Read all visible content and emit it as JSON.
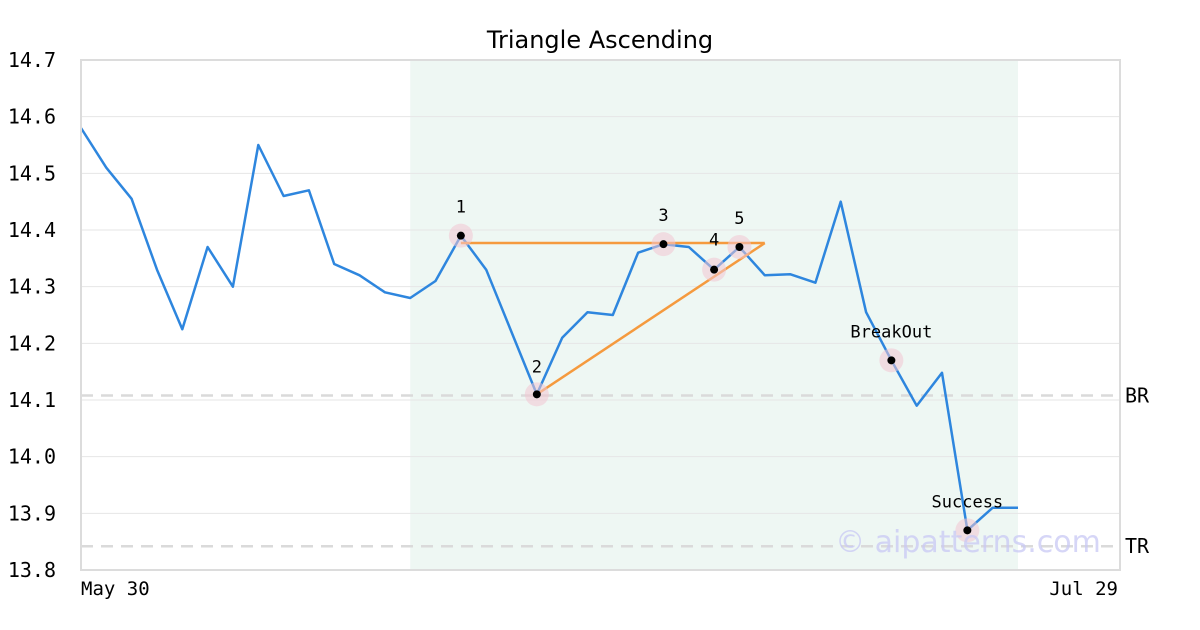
{
  "chart_data": {
    "type": "line",
    "title": "Triangle Ascending",
    "ylim": [
      13.8,
      14.7
    ],
    "y_ticks": [
      "13.8",
      "13.9",
      "14.0",
      "14.1",
      "14.2",
      "14.3",
      "14.4",
      "14.5",
      "14.6",
      "14.7"
    ],
    "x_tick_labels": [
      "May 30",
      "Jul 29"
    ],
    "grid": "horizontal",
    "series": [
      {
        "color": "#2e86de",
        "values": [
          14.58,
          14.51,
          14.455,
          14.33,
          14.225,
          14.37,
          14.3,
          14.55,
          14.46,
          14.47,
          14.34,
          14.32,
          14.29,
          14.28,
          14.31,
          14.39,
          14.33,
          14.22,
          14.11,
          14.21,
          14.255,
          14.25,
          14.36,
          14.375,
          14.37,
          14.33,
          14.37,
          14.32,
          14.322,
          14.307,
          14.45,
          14.255,
          14.17,
          14.09,
          14.148,
          13.87,
          13.91,
          13.91
        ]
      }
    ],
    "pattern_region": {
      "from_index": 13,
      "to_index": 37,
      "color": "#eef7f3"
    },
    "pattern_lines": {
      "color": "#f59a3e",
      "resistance": {
        "from_index": 15,
        "to_index": 27,
        "y": 14.377
      },
      "support": {
        "from_index": 18,
        "y_from": 14.11,
        "to_index": 27,
        "y_to": 14.377
      }
    },
    "points": [
      {
        "label": "1",
        "index": 15,
        "y": 14.39
      },
      {
        "label": "2",
        "index": 18,
        "y": 14.11
      },
      {
        "label": "3",
        "index": 23,
        "y": 14.375
      },
      {
        "label": "4",
        "index": 25,
        "y": 14.33
      },
      {
        "label": "5",
        "index": 26,
        "y": 14.37
      },
      {
        "label": "BreakOut",
        "index": 32,
        "y": 14.17
      },
      {
        "label": "Success",
        "index": 35,
        "y": 13.87
      }
    ],
    "levels": [
      {
        "label": "BR",
        "y": 14.108
      },
      {
        "label": "TR",
        "y": 13.842
      }
    ]
  },
  "watermark": "© aipatterns.com"
}
